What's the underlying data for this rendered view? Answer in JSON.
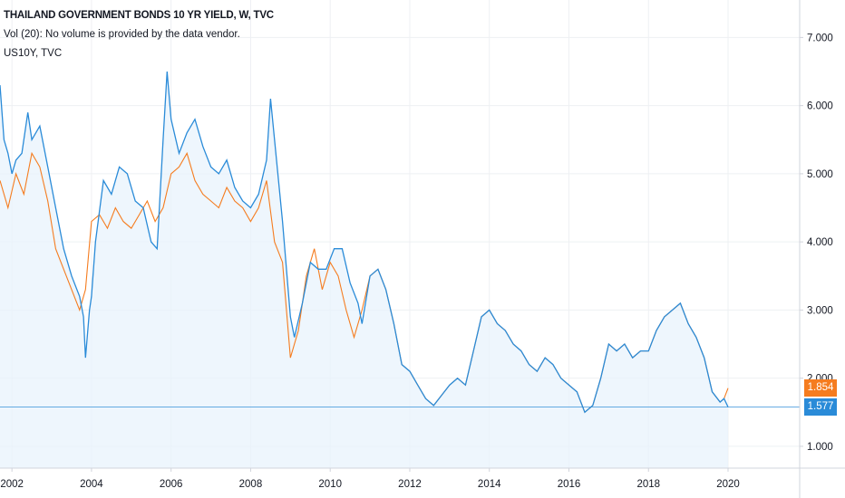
{
  "legend": {
    "title": "THAILAND GOVERNMENT BONDS 10 YR YIELD, W, TVC",
    "volume_note": "Vol (20): No volume is provided by the data vendor.",
    "compare_symbol": "US10Y, TVC"
  },
  "colors": {
    "thai_series": "#f57c1f",
    "us10y_series": "#2a8bd8",
    "area_fill": "#e8f3fc",
    "grid": "#eef0f3",
    "axis_border": "#d1d4dc"
  },
  "badges": {
    "thai_last": "1.854",
    "us10y_last": "1.577"
  },
  "chart_data": {
    "type": "line",
    "xlabel": "",
    "ylabel": "",
    "xlim": [
      2001.7,
      2021.8
    ],
    "ylim": [
      0.68,
      7.55
    ],
    "x_ticks": [
      "2002",
      "2004",
      "2006",
      "2008",
      "2010",
      "2012",
      "2014",
      "2016",
      "2018",
      "2020"
    ],
    "y_ticks": [
      "7.000",
      "6.000",
      "5.000",
      "4.000",
      "3.000",
      "2.000",
      "1.000"
    ],
    "grid": true,
    "horizontal_reference": 1.577,
    "series": [
      {
        "name": "THAILAND GOVERNMENT BONDS 10 YR YIELD, W, TVC",
        "color_key": "thai_series",
        "points": [
          [
            2001.7,
            4.9
          ],
          [
            2001.9,
            4.5
          ],
          [
            2002.1,
            5.0
          ],
          [
            2002.3,
            4.7
          ],
          [
            2002.5,
            5.3
          ],
          [
            2002.7,
            5.1
          ],
          [
            2002.9,
            4.6
          ],
          [
            2003.1,
            3.9
          ],
          [
            2003.3,
            3.6
          ],
          [
            2003.5,
            3.3
          ],
          [
            2003.7,
            3.0
          ],
          [
            2003.85,
            3.3
          ],
          [
            2004.0,
            4.3
          ],
          [
            2004.2,
            4.4
          ],
          [
            2004.4,
            4.2
          ],
          [
            2004.6,
            4.5
          ],
          [
            2004.8,
            4.3
          ],
          [
            2005.0,
            4.2
          ],
          [
            2005.2,
            4.4
          ],
          [
            2005.4,
            4.6
          ],
          [
            2005.6,
            4.3
          ],
          [
            2005.8,
            4.5
          ],
          [
            2006.0,
            5.0
          ],
          [
            2006.2,
            5.1
          ],
          [
            2006.4,
            5.3
          ],
          [
            2006.6,
            4.9
          ],
          [
            2006.8,
            4.7
          ],
          [
            2007.0,
            4.6
          ],
          [
            2007.2,
            4.5
          ],
          [
            2007.4,
            4.8
          ],
          [
            2007.6,
            4.6
          ],
          [
            2007.8,
            4.5
          ],
          [
            2008.0,
            4.3
          ],
          [
            2008.2,
            4.5
          ],
          [
            2008.4,
            4.9
          ],
          [
            2008.6,
            4.0
          ],
          [
            2008.8,
            3.7
          ],
          [
            2009.0,
            2.3
          ],
          [
            2009.2,
            2.7
          ],
          [
            2009.4,
            3.5
          ],
          [
            2009.6,
            3.9
          ],
          [
            2009.8,
            3.3
          ],
          [
            2010.0,
            3.7
          ],
          [
            2010.2,
            3.5
          ],
          [
            2010.4,
            3.0
          ],
          [
            2010.6,
            2.6
          ],
          [
            2010.8,
            3.0
          ],
          [
            2011.0,
            3.5
          ],
          [
            2011.2,
            3.6
          ],
          [
            2011.4,
            3.3
          ],
          [
            2011.6,
            2.8
          ],
          [
            2011.8,
            2.2
          ],
          [
            2012.0,
            2.1
          ],
          [
            2012.2,
            1.9
          ],
          [
            2012.4,
            1.7
          ],
          [
            2012.6,
            1.6
          ],
          [
            2012.8,
            1.75
          ],
          [
            2013.0,
            1.9
          ],
          [
            2013.2,
            2.0
          ],
          [
            2013.4,
            1.9
          ],
          [
            2013.6,
            2.4
          ],
          [
            2013.8,
            2.9
          ],
          [
            2014.0,
            3.0
          ],
          [
            2014.2,
            2.8
          ],
          [
            2014.4,
            2.7
          ],
          [
            2014.6,
            2.5
          ],
          [
            2014.8,
            2.4
          ],
          [
            2015.0,
            2.2
          ],
          [
            2015.2,
            2.1
          ],
          [
            2015.4,
            2.3
          ],
          [
            2015.6,
            2.2
          ],
          [
            2015.8,
            2.0
          ],
          [
            2016.0,
            1.9
          ],
          [
            2016.2,
            1.8
          ],
          [
            2016.4,
            1.5
          ],
          [
            2016.6,
            1.6
          ],
          [
            2016.8,
            2.0
          ],
          [
            2017.0,
            2.5
          ],
          [
            2017.2,
            2.4
          ],
          [
            2017.4,
            2.5
          ],
          [
            2017.6,
            2.3
          ],
          [
            2017.8,
            2.4
          ],
          [
            2018.0,
            2.4
          ],
          [
            2018.2,
            2.7
          ],
          [
            2018.4,
            2.9
          ],
          [
            2018.6,
            3.0
          ],
          [
            2018.8,
            3.1
          ],
          [
            2019.0,
            2.8
          ],
          [
            2019.2,
            2.6
          ],
          [
            2019.4,
            2.3
          ],
          [
            2019.6,
            1.8
          ],
          [
            2019.8,
            1.65
          ],
          [
            2019.9,
            1.7
          ],
          [
            2020.0,
            1.854
          ]
        ]
      },
      {
        "name": "US10Y, TVC",
        "color_key": "us10y_series",
        "points": [
          [
            2001.7,
            6.3
          ],
          [
            2001.8,
            5.5
          ],
          [
            2001.9,
            5.3
          ],
          [
            2002.0,
            5.0
          ],
          [
            2002.1,
            5.2
          ],
          [
            2002.25,
            5.3
          ],
          [
            2002.4,
            5.9
          ],
          [
            2002.5,
            5.5
          ],
          [
            2002.7,
            5.7
          ],
          [
            2002.9,
            5.1
          ],
          [
            2003.1,
            4.5
          ],
          [
            2003.3,
            3.9
          ],
          [
            2003.5,
            3.5
          ],
          [
            2003.7,
            3.2
          ],
          [
            2003.8,
            2.9
          ],
          [
            2003.85,
            2.3
          ],
          [
            2003.95,
            3.0
          ],
          [
            2004.0,
            3.2
          ],
          [
            2004.1,
            4.0
          ],
          [
            2004.3,
            4.9
          ],
          [
            2004.5,
            4.7
          ],
          [
            2004.7,
            5.1
          ],
          [
            2004.9,
            5.0
          ],
          [
            2005.1,
            4.6
          ],
          [
            2005.3,
            4.5
          ],
          [
            2005.5,
            4.0
          ],
          [
            2005.65,
            3.9
          ],
          [
            2005.8,
            5.5
          ],
          [
            2005.9,
            6.5
          ],
          [
            2006.0,
            5.8
          ],
          [
            2006.2,
            5.3
          ],
          [
            2006.4,
            5.6
          ],
          [
            2006.6,
            5.8
          ],
          [
            2006.8,
            5.4
          ],
          [
            2007.0,
            5.1
          ],
          [
            2007.2,
            5.0
          ],
          [
            2007.4,
            5.2
          ],
          [
            2007.6,
            4.8
          ],
          [
            2007.8,
            4.6
          ],
          [
            2008.0,
            4.5
          ],
          [
            2008.2,
            4.7
          ],
          [
            2008.4,
            5.2
          ],
          [
            2008.5,
            6.1
          ],
          [
            2008.6,
            5.5
          ],
          [
            2008.8,
            4.3
          ],
          [
            2009.0,
            2.9
          ],
          [
            2009.1,
            2.6
          ],
          [
            2009.3,
            3.1
          ],
          [
            2009.5,
            3.7
          ],
          [
            2009.7,
            3.6
          ],
          [
            2009.9,
            3.6
          ],
          [
            2010.1,
            3.9
          ],
          [
            2010.3,
            3.9
          ],
          [
            2010.5,
            3.4
          ],
          [
            2010.7,
            3.1
          ],
          [
            2010.8,
            2.8
          ],
          [
            2011.0,
            3.5
          ],
          [
            2011.2,
            3.6
          ],
          [
            2011.4,
            3.3
          ],
          [
            2011.6,
            2.8
          ],
          [
            2011.8,
            2.2
          ],
          [
            2012.0,
            2.1
          ],
          [
            2012.2,
            1.9
          ],
          [
            2012.4,
            1.7
          ],
          [
            2012.6,
            1.6
          ],
          [
            2012.8,
            1.75
          ],
          [
            2013.0,
            1.9
          ],
          [
            2013.2,
            2.0
          ],
          [
            2013.4,
            1.9
          ],
          [
            2013.6,
            2.4
          ],
          [
            2013.8,
            2.9
          ],
          [
            2014.0,
            3.0
          ],
          [
            2014.2,
            2.8
          ],
          [
            2014.4,
            2.7
          ],
          [
            2014.6,
            2.5
          ],
          [
            2014.8,
            2.4
          ],
          [
            2015.0,
            2.2
          ],
          [
            2015.2,
            2.1
          ],
          [
            2015.4,
            2.3
          ],
          [
            2015.6,
            2.2
          ],
          [
            2015.8,
            2.0
          ],
          [
            2016.0,
            1.9
          ],
          [
            2016.2,
            1.8
          ],
          [
            2016.4,
            1.5
          ],
          [
            2016.6,
            1.6
          ],
          [
            2016.8,
            2.0
          ],
          [
            2017.0,
            2.5
          ],
          [
            2017.2,
            2.4
          ],
          [
            2017.4,
            2.5
          ],
          [
            2017.6,
            2.3
          ],
          [
            2017.8,
            2.4
          ],
          [
            2018.0,
            2.4
          ],
          [
            2018.2,
            2.7
          ],
          [
            2018.4,
            2.9
          ],
          [
            2018.6,
            3.0
          ],
          [
            2018.8,
            3.1
          ],
          [
            2019.0,
            2.8
          ],
          [
            2019.2,
            2.6
          ],
          [
            2019.4,
            2.3
          ],
          [
            2019.6,
            1.8
          ],
          [
            2019.8,
            1.65
          ],
          [
            2019.9,
            1.7
          ],
          [
            2020.0,
            1.577
          ]
        ]
      }
    ]
  }
}
